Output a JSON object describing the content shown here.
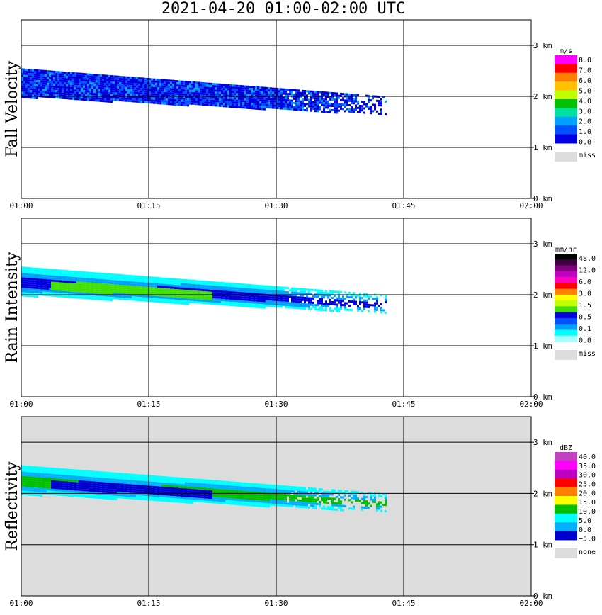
{
  "title": "2021-04-20   01:00-02:00 UTC",
  "colors": {
    "background": "#ffffff",
    "missing": "#dcdcdc",
    "grid": "#000000"
  },
  "chart_data": [
    {
      "type": "heatmap",
      "ylabel": "Fall Velocity",
      "x_ticks": [
        "01:00",
        "01:15",
        "01:30",
        "01:45",
        "02:00"
      ],
      "y_ticks": [
        "0 km",
        "1 km",
        "2 km",
        "3 km"
      ],
      "xlim": [
        "01:00",
        "02:00"
      ],
      "ylim": [
        0,
        3.5
      ],
      "grid": true,
      "legend_position": "right",
      "legend": {
        "unit": "m/s",
        "labels": [
          "8.0",
          "7.0",
          "6.0",
          "5.0",
          "4.0",
          "3.0",
          "2.0",
          "1.0",
          "0.0"
        ],
        "colors": [
          "#ff00ff",
          "#ff0000",
          "#ff8000",
          "#ffc000",
          "#c0ff00",
          "#00c000",
          "#00e0a0",
          "#00a0ff",
          "#0050ff",
          "#0000e0"
        ],
        "missing_label": "miss"
      },
      "echo_band": {
        "x_start_min": 0,
        "x_end_min": 43,
        "top_km_start": 2.55,
        "top_km_end": 2.0,
        "bottom_km_start": 2.0,
        "bottom_km_end": 1.65,
        "dominant_colors": [
          "#0000e0",
          "#0050ff",
          "#00a0ff"
        ]
      }
    },
    {
      "type": "heatmap",
      "ylabel": "Rain Intensity",
      "x_ticks": [
        "01:00",
        "01:15",
        "01:30",
        "01:45",
        "02:00"
      ],
      "y_ticks": [
        "0 km",
        "1 km",
        "2 km",
        "3 km"
      ],
      "xlim": [
        "01:00",
        "02:00"
      ],
      "ylim": [
        0,
        3.5
      ],
      "grid": true,
      "legend_position": "right",
      "legend": {
        "unit": "mm/hr",
        "labels": [
          "48.0",
          "12.0",
          "6.0",
          "3.0",
          "1.5",
          "0.5",
          "0.1",
          "0.0"
        ],
        "colors": [
          "#000000",
          "#400040",
          "#800080",
          "#c000c0",
          "#ff00c0",
          "#ff0000",
          "#ff8000",
          "#ffff00",
          "#c0ff00",
          "#40e000",
          "#0000e0",
          "#0050ff",
          "#00a0ff",
          "#00ffff",
          "#a0ffff"
        ],
        "missing_label": "miss"
      },
      "echo_band": {
        "x_start_min": 0,
        "x_end_min": 43,
        "top_km_start": 2.55,
        "top_km_end": 2.0,
        "bottom_km_start": 2.0,
        "bottom_km_end": 1.65,
        "dominant_colors": [
          "#00ffff",
          "#00a0ff",
          "#0000e0",
          "#40e000"
        ]
      }
    },
    {
      "type": "heatmap",
      "ylabel": "Reflectivity",
      "x_ticks": [
        "01:00",
        "01:15",
        "01:30",
        "01:45",
        "02:00"
      ],
      "y_ticks": [
        "0 km",
        "1 km",
        "2 km",
        "3 km"
      ],
      "xlim": [
        "01:00",
        "02:00"
      ],
      "ylim": [
        0,
        3.5
      ],
      "grid": true,
      "legend_position": "right",
      "legend": {
        "unit": "dBZ",
        "labels": [
          "40.0",
          "35.0",
          "30.0",
          "25.0",
          "20.0",
          "15.0",
          "10.0",
          "5.0",
          "0.0",
          "−5.0"
        ],
        "colors": [
          "#c040c0",
          "#ff00ff",
          "#c000c0",
          "#ff0000",
          "#ff8000",
          "#ffff00",
          "#00c000",
          "#00ffff",
          "#00b0ff",
          "#0000d0"
        ],
        "missing_label": "none"
      },
      "echo_band": {
        "x_start_min": 0,
        "x_end_min": 43,
        "top_km_start": 2.55,
        "top_km_end": 2.0,
        "bottom_km_start": 2.0,
        "bottom_km_end": 1.65,
        "dominant_colors": [
          "#00ffff",
          "#00b0ff",
          "#00c000",
          "#0000d0"
        ]
      }
    }
  ]
}
